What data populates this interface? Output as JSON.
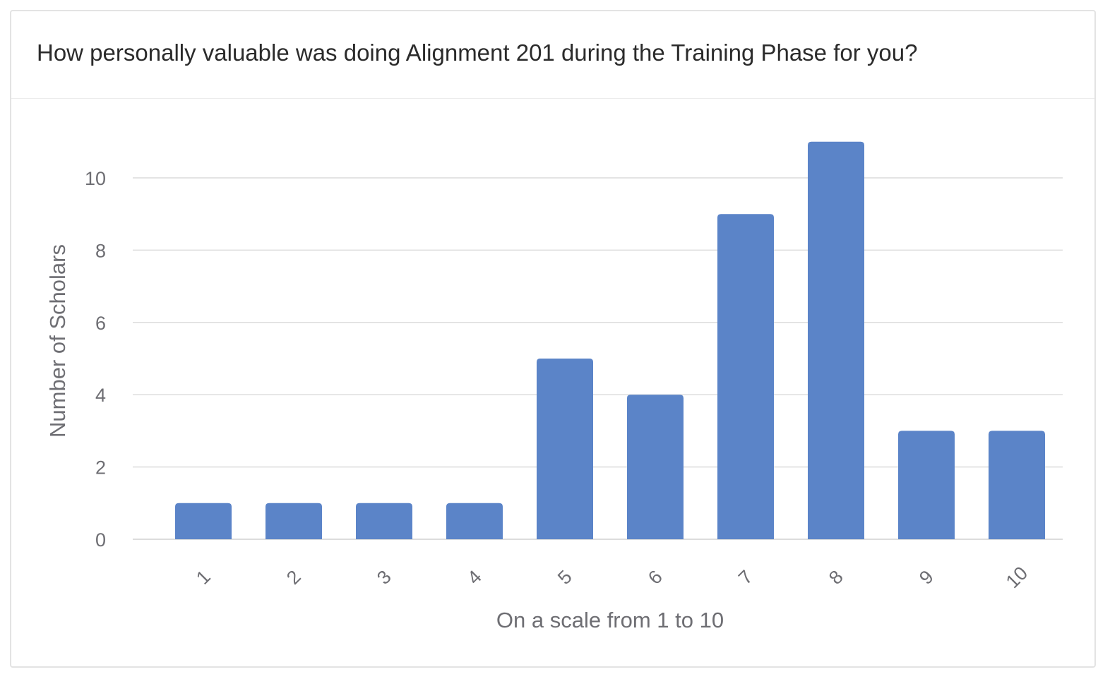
{
  "card": {
    "title": "How personally valuable was doing Alignment 201 during the Training Phase for you?"
  },
  "colors": {
    "bar": "#5b84c8",
    "grid": "#dcdcdc",
    "axis_text": "#6e6e73",
    "title_text": "#2b2b2b"
  },
  "chart_data": {
    "type": "bar",
    "title": "How personally valuable was doing Alignment 201 during the Training Phase for you?",
    "categories": [
      "1",
      "2",
      "3",
      "4",
      "5",
      "6",
      "7",
      "8",
      "9",
      "10"
    ],
    "values": [
      1,
      1,
      1,
      1,
      5,
      4,
      9,
      11,
      3,
      3
    ],
    "xlabel": "On a scale from 1 to 10",
    "ylabel": "Number of Scholars",
    "ylim": [
      0,
      11
    ],
    "yticks": [
      0,
      2,
      4,
      6,
      8,
      10
    ],
    "grid": true,
    "legend": "none",
    "x_tick_rotation": "diagonal"
  }
}
